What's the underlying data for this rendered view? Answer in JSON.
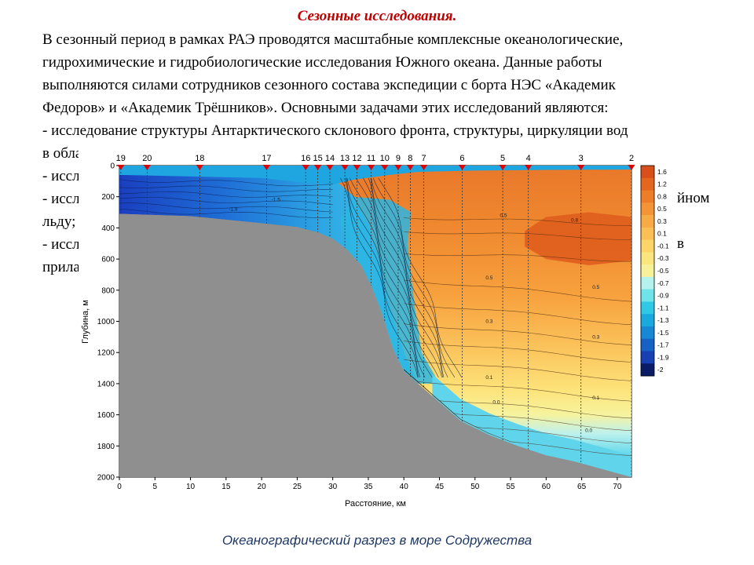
{
  "slide": {
    "title": "Сезонные исследования.",
    "paragraph_lines": [
      "В сезонный период в рамках РАЭ проводятся масштабные комплексные океанологические,",
      "гидрохимические и гидробиологические исследования Южного океана. Данные работы",
      "выполняются силами сотрудников сезонного состава экспедиции с борта НЭС «Академик",
      "Федоров» и «Академик Трёшников». Основными задачами этих исследований являются:",
      "- исследование структуры Антарктического склонового фронта, структуры, циркуляции вод",
      "в обла",
      "- иссл",
      "- иссл",
      "льду;",
      "- иссл",
      "прила"
    ],
    "occluded_tails": {
      "line8": "йном",
      "line10": "в"
    },
    "caption": "Океанографический разрез в море Содружества"
  },
  "chart_data": {
    "type": "heatmap",
    "title": "",
    "xlabel": "Расстояние, км",
    "ylabel": "Глубина, м",
    "xlim": [
      0,
      72
    ],
    "ylim": [
      2000,
      0
    ],
    "x_ticks": [
      0,
      5,
      10,
      15,
      20,
      25,
      30,
      35,
      40,
      45,
      50,
      55,
      60,
      65,
      70
    ],
    "y_ticks": [
      0,
      200,
      400,
      600,
      800,
      1000,
      1200,
      1400,
      1600,
      1800,
      2000
    ],
    "stations": [
      {
        "label": "19",
        "x": 0.2
      },
      {
        "label": "20",
        "x": 3.9
      },
      {
        "label": "18",
        "x": 11.3
      },
      {
        "label": "17",
        "x": 20.7
      },
      {
        "label": "16",
        "x": 26.2
      },
      {
        "label": "15",
        "x": 27.9
      },
      {
        "label": "14",
        "x": 29.6
      },
      {
        "label": "13",
        "x": 31.7
      },
      {
        "label": "12",
        "x": 33.4
      },
      {
        "label": "11",
        "x": 35.4
      },
      {
        "label": "10",
        "x": 37.3
      },
      {
        "label": "9",
        "x": 39.2
      },
      {
        "label": "8",
        "x": 40.9
      },
      {
        "label": "7",
        "x": 42.8
      },
      {
        "label": "6",
        "x": 48.2
      },
      {
        "label": "5",
        "x": 53.9
      },
      {
        "label": "4",
        "x": 57.5
      },
      {
        "label": "3",
        "x": 64.9
      },
      {
        "label": "2",
        "x": 72.0
      }
    ],
    "bottom_profile": [
      [
        0,
        310
      ],
      [
        10,
        325
      ],
      [
        20,
        370
      ],
      [
        25,
        395
      ],
      [
        28,
        430
      ],
      [
        30,
        470
      ],
      [
        32,
        540
      ],
      [
        34,
        640
      ],
      [
        35.5,
        780
      ],
      [
        37,
        960
      ],
      [
        38.5,
        1180
      ],
      [
        40,
        1320
      ],
      [
        42,
        1400
      ],
      [
        45,
        1520
      ],
      [
        48,
        1640
      ],
      [
        52,
        1730
      ],
      [
        56,
        1800
      ],
      [
        60,
        1860
      ],
      [
        64,
        1900
      ],
      [
        68,
        1950
      ],
      [
        72,
        2000
      ]
    ],
    "colorbar": {
      "labels": [
        "1.6",
        "1.2",
        "0.8",
        "0.5",
        "0.3",
        "0.1",
        "-0.1",
        "-0.3",
        "-0.5",
        "-0.7",
        "-0.9",
        "-1.1",
        "-1.3",
        "-1.5",
        "-1.7",
        "-1.9",
        "-2"
      ],
      "colors": [
        "#d84f1a",
        "#e4661f",
        "#ee7d29",
        "#f39536",
        "#f8aa45",
        "#fbbf55",
        "#fdd468",
        "#fbe57e",
        "#f7f29a",
        "#b3f2ee",
        "#6fe3ea",
        "#2fc9e6",
        "#1aa9de",
        "#1688d4",
        "#1561c6",
        "#1640b4",
        "#0a1c66"
      ]
    },
    "contour_labels": [
      {
        "x": 54,
        "y": 330,
        "text": "0.5"
      },
      {
        "x": 64,
        "y": 360,
        "text": "0.8"
      },
      {
        "x": 52,
        "y": 730,
        "text": "0.5"
      },
      {
        "x": 67,
        "y": 790,
        "text": "0.5"
      },
      {
        "x": 52,
        "y": 1010,
        "text": "0.3"
      },
      {
        "x": 67,
        "y": 1110,
        "text": "0.3"
      },
      {
        "x": 52,
        "y": 1370,
        "text": "0.1"
      },
      {
        "x": 67,
        "y": 1500,
        "text": "0.1"
      },
      {
        "x": 53,
        "y": 1530,
        "text": "0.0"
      },
      {
        "x": 66,
        "y": 1710,
        "text": "0.0"
      },
      {
        "x": 16,
        "y": 290,
        "text": "-1.9"
      },
      {
        "x": 22,
        "y": 230,
        "text": "-1.5"
      }
    ]
  }
}
